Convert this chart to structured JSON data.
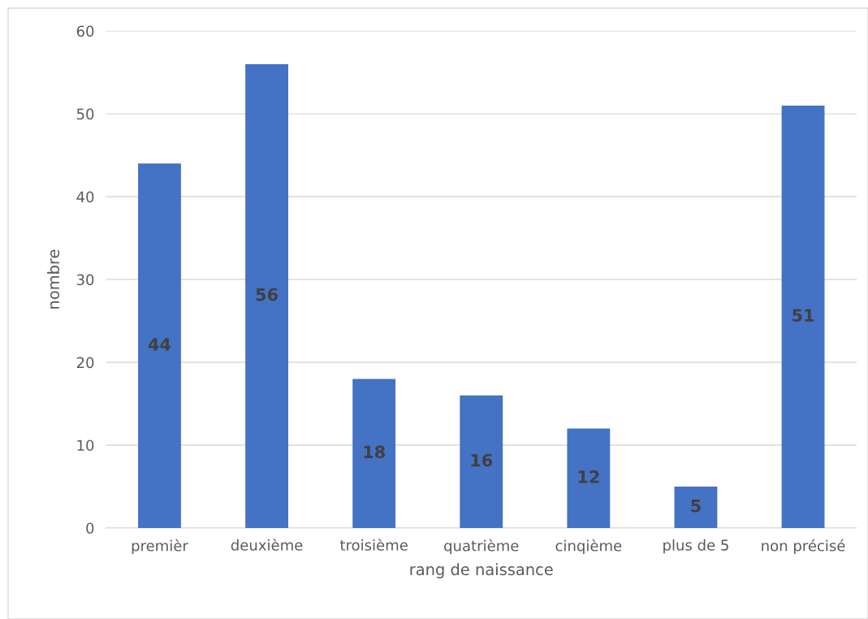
{
  "chart_data": {
    "type": "bar",
    "xlabel": "rang de naissance",
    "ylabel": "nombre",
    "categories": [
      "premièr",
      "deuxième",
      "troisième",
      "quatrième",
      "cinqième",
      "plus de 5",
      "non précisé"
    ],
    "values": [
      44,
      56,
      18,
      16,
      12,
      5,
      51
    ],
    "color": "#4472c4",
    "ylim": [
      0,
      60
    ],
    "yticks": [
      0,
      10,
      20,
      30,
      40,
      50,
      60
    ],
    "grid": "y",
    "data_labels": true,
    "legend": false
  }
}
